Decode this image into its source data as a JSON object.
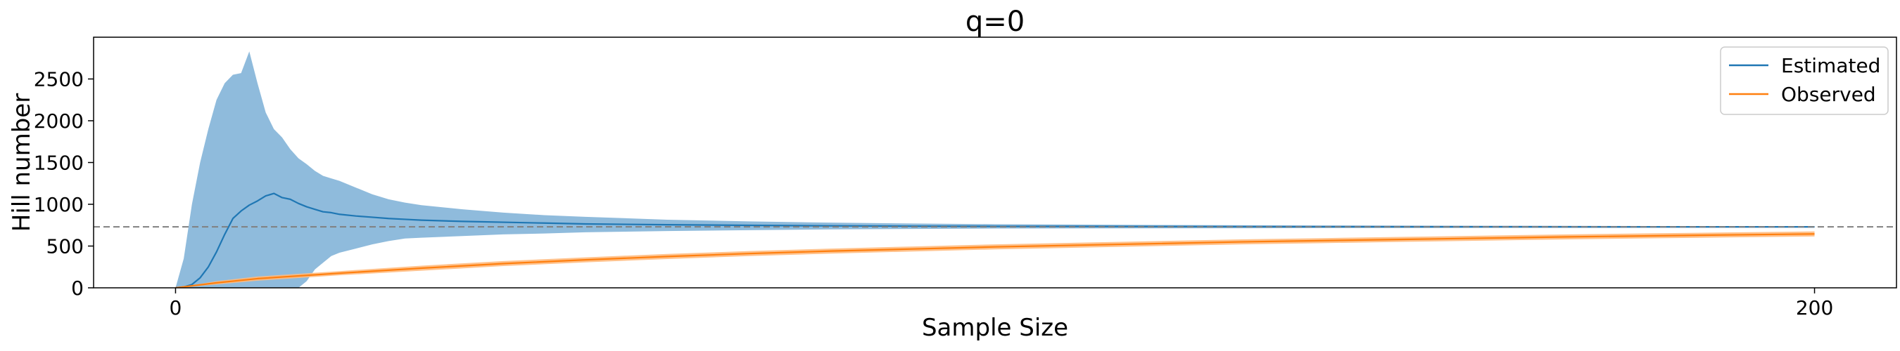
{
  "chart_data": {
    "type": "line",
    "title": "q=0",
    "xlabel": "Sample Size",
    "ylabel": "Hill number",
    "xlim": [
      -10,
      210
    ],
    "ylim": [
      0,
      3000
    ],
    "xticks": [
      0,
      200
    ],
    "yticks": [
      0,
      500,
      1000,
      1500,
      2000,
      2500
    ],
    "grid": false,
    "legend_position": "top-right",
    "reference_line": {
      "y": 730,
      "style": "dashed",
      "color": "#808080"
    },
    "series": [
      {
        "name": "Estimated",
        "color": "#1f77b4",
        "band_color": "#8fbbdc",
        "x": [
          0,
          1,
          2,
          3,
          4,
          5,
          6,
          7,
          8,
          9,
          10,
          11,
          12,
          13,
          14,
          15,
          16,
          17,
          18,
          19,
          20,
          22,
          24,
          26,
          28,
          30,
          35,
          40,
          45,
          50,
          60,
          70,
          80,
          90,
          100,
          120,
          140,
          160,
          180,
          200
        ],
        "y": [
          0,
          10,
          40,
          120,
          250,
          430,
          640,
          830,
          920,
          990,
          1040,
          1100,
          1130,
          1080,
          1060,
          1010,
          970,
          940,
          910,
          900,
          880,
          860,
          845,
          830,
          820,
          810,
          795,
          785,
          775,
          765,
          755,
          748,
          742,
          738,
          736,
          734,
          732,
          731,
          730,
          730
        ],
        "lower": [
          0,
          0,
          0,
          0,
          0,
          0,
          0,
          0,
          0,
          0,
          0,
          0,
          0,
          0,
          0,
          0,
          80,
          220,
          300,
          380,
          420,
          470,
          520,
          560,
          590,
          600,
          620,
          640,
          650,
          665,
          680,
          690,
          700,
          705,
          710,
          712,
          715,
          717,
          718,
          720
        ],
        "upper": [
          0,
          350,
          1000,
          1500,
          1900,
          2250,
          2450,
          2550,
          2570,
          2830,
          2450,
          2100,
          1900,
          1800,
          1660,
          1550,
          1480,
          1400,
          1340,
          1310,
          1280,
          1200,
          1120,
          1060,
          1020,
          990,
          940,
          900,
          870,
          850,
          815,
          795,
          780,
          770,
          762,
          752,
          746,
          742,
          740,
          738
        ]
      },
      {
        "name": "Observed",
        "color": "#ff7f0e",
        "band_color": "#ffbb80",
        "x": [
          0,
          5,
          10,
          20,
          30,
          40,
          50,
          60,
          70,
          80,
          90,
          100,
          110,
          120,
          130,
          140,
          150,
          160,
          170,
          180,
          190,
          200
        ],
        "y": [
          0,
          60,
          110,
          175,
          235,
          290,
          335,
          375,
          410,
          440,
          465,
          490,
          510,
          530,
          550,
          565,
          580,
          595,
          610,
          622,
          634,
          645
        ],
        "lower": [
          0,
          40,
          85,
          150,
          205,
          260,
          305,
          345,
          380,
          410,
          435,
          460,
          480,
          500,
          520,
          535,
          550,
          565,
          580,
          592,
          604,
          615
        ],
        "upper": [
          0,
          80,
          135,
          200,
          265,
          320,
          365,
          405,
          440,
          470,
          495,
          520,
          540,
          560,
          580,
          595,
          610,
          625,
          640,
          652,
          664,
          675
        ]
      }
    ]
  }
}
